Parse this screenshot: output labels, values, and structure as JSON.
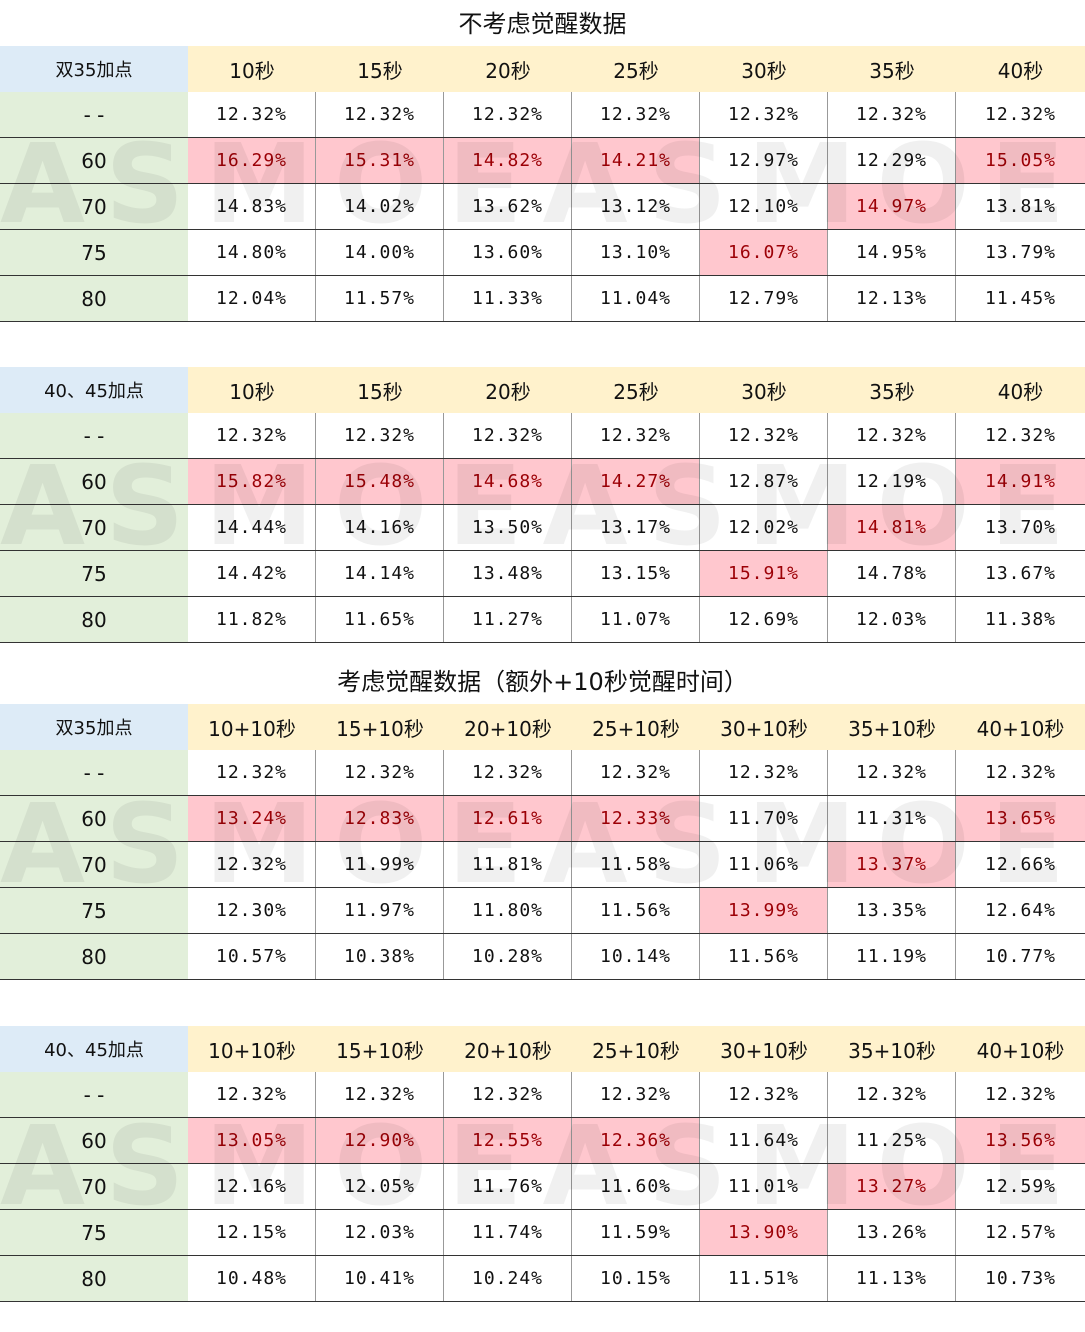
{
  "tables": [
    {
      "title": "不考虑觉醒数据",
      "corner": "双35加点",
      "cols": [
        "10秒",
        "15秒",
        "20秒",
        "25秒",
        "30秒",
        "35秒",
        "40秒"
      ],
      "rows": [
        {
          "label": "- -",
          "values": [
            "12.32%",
            "12.32%",
            "12.32%",
            "12.32%",
            "12.32%",
            "12.32%",
            "12.32%"
          ]
        },
        {
          "label": "60",
          "values": [
            "16.29%",
            "15.31%",
            "14.82%",
            "14.21%",
            "12.97%",
            "12.29%",
            "15.05%"
          ]
        },
        {
          "label": "70",
          "values": [
            "14.83%",
            "14.02%",
            "13.62%",
            "13.12%",
            "12.10%",
            "14.97%",
            "13.81%"
          ]
        },
        {
          "label": "75",
          "values": [
            "14.80%",
            "14.00%",
            "13.60%",
            "13.10%",
            "16.07%",
            "14.95%",
            "13.79%"
          ]
        },
        {
          "label": "80",
          "values": [
            "12.04%",
            "11.57%",
            "11.33%",
            "11.04%",
            "12.79%",
            "12.13%",
            "11.45%"
          ]
        }
      ]
    },
    {
      "title": "",
      "corner": "40、45加点",
      "cols": [
        "10秒",
        "15秒",
        "20秒",
        "25秒",
        "30秒",
        "35秒",
        "40秒"
      ],
      "rows": [
        {
          "label": "- -",
          "values": [
            "12.32%",
            "12.32%",
            "12.32%",
            "12.32%",
            "12.32%",
            "12.32%",
            "12.32%"
          ]
        },
        {
          "label": "60",
          "values": [
            "15.82%",
            "15.48%",
            "14.68%",
            "14.27%",
            "12.87%",
            "12.19%",
            "14.91%"
          ]
        },
        {
          "label": "70",
          "values": [
            "14.44%",
            "14.16%",
            "13.50%",
            "13.17%",
            "12.02%",
            "14.81%",
            "13.70%"
          ]
        },
        {
          "label": "75",
          "values": [
            "14.42%",
            "14.14%",
            "13.48%",
            "13.15%",
            "15.91%",
            "14.78%",
            "13.67%"
          ]
        },
        {
          "label": "80",
          "values": [
            "11.82%",
            "11.65%",
            "11.27%",
            "11.07%",
            "12.69%",
            "12.03%",
            "11.38%"
          ]
        }
      ]
    },
    {
      "title": "考虑觉醒数据（额外+10秒觉醒时间）",
      "corner": "双35加点",
      "cols": [
        "10+10秒",
        "15+10秒",
        "20+10秒",
        "25+10秒",
        "30+10秒",
        "35+10秒",
        "40+10秒"
      ],
      "rows": [
        {
          "label": "- -",
          "values": [
            "12.32%",
            "12.32%",
            "12.32%",
            "12.32%",
            "12.32%",
            "12.32%",
            "12.32%"
          ]
        },
        {
          "label": "60",
          "values": [
            "13.24%",
            "12.83%",
            "12.61%",
            "12.33%",
            "11.70%",
            "11.31%",
            "13.65%"
          ]
        },
        {
          "label": "70",
          "values": [
            "12.32%",
            "11.99%",
            "11.81%",
            "11.58%",
            "11.06%",
            "13.37%",
            "12.66%"
          ]
        },
        {
          "label": "75",
          "values": [
            "12.30%",
            "11.97%",
            "11.80%",
            "11.56%",
            "13.99%",
            "13.35%",
            "12.64%"
          ]
        },
        {
          "label": "80",
          "values": [
            "10.57%",
            "10.38%",
            "10.28%",
            "10.14%",
            "11.56%",
            "11.19%",
            "10.77%"
          ]
        }
      ]
    },
    {
      "title": "",
      "corner": "40、45加点",
      "cols": [
        "10+10秒",
        "15+10秒",
        "20+10秒",
        "25+10秒",
        "30+10秒",
        "35+10秒",
        "40+10秒"
      ],
      "rows": [
        {
          "label": "- -",
          "values": [
            "12.32%",
            "12.32%",
            "12.32%",
            "12.32%",
            "12.32%",
            "12.32%",
            "12.32%"
          ]
        },
        {
          "label": "60",
          "values": [
            "13.05%",
            "12.90%",
            "12.55%",
            "12.36%",
            "11.64%",
            "11.25%",
            "13.56%"
          ]
        },
        {
          "label": "70",
          "values": [
            "12.16%",
            "12.05%",
            "11.76%",
            "11.60%",
            "11.01%",
            "13.27%",
            "12.59%"
          ]
        },
        {
          "label": "75",
          "values": [
            "12.15%",
            "12.03%",
            "11.74%",
            "11.59%",
            "13.90%",
            "13.26%",
            "12.57%"
          ]
        },
        {
          "label": "80",
          "values": [
            "10.48%",
            "10.41%",
            "10.24%",
            "10.15%",
            "11.51%",
            "11.13%",
            "10.73%"
          ]
        }
      ]
    }
  ],
  "highlights": [
    [
      [
        1,
        0
      ],
      [
        1,
        1
      ],
      [
        1,
        2
      ],
      [
        1,
        3
      ],
      [
        1,
        6
      ],
      [
        2,
        5
      ],
      [
        3,
        4
      ]
    ],
    [
      [
        1,
        0
      ],
      [
        1,
        1
      ],
      [
        1,
        2
      ],
      [
        1,
        3
      ],
      [
        1,
        6
      ],
      [
        2,
        5
      ],
      [
        3,
        4
      ]
    ],
    [
      [
        1,
        0
      ],
      [
        1,
        1
      ],
      [
        1,
        2
      ],
      [
        1,
        3
      ],
      [
        1,
        6
      ],
      [
        2,
        5
      ],
      [
        3,
        4
      ]
    ],
    [
      [
        1,
        0
      ],
      [
        1,
        1
      ],
      [
        1,
        2
      ],
      [
        1,
        3
      ],
      [
        1,
        6
      ],
      [
        2,
        5
      ],
      [
        3,
        4
      ]
    ]
  ],
  "colors": {
    "corner_bg": "#ddebf7",
    "label_bg": "#e2efda",
    "header_bg": "#fff2cc",
    "highlight_bg": "#ffc7ce",
    "highlight_text": "#9c0006"
  },
  "watermark": [
    "A",
    "S",
    "M",
    "O",
    "E",
    "A",
    "S",
    "M",
    "O",
    "E"
  ]
}
